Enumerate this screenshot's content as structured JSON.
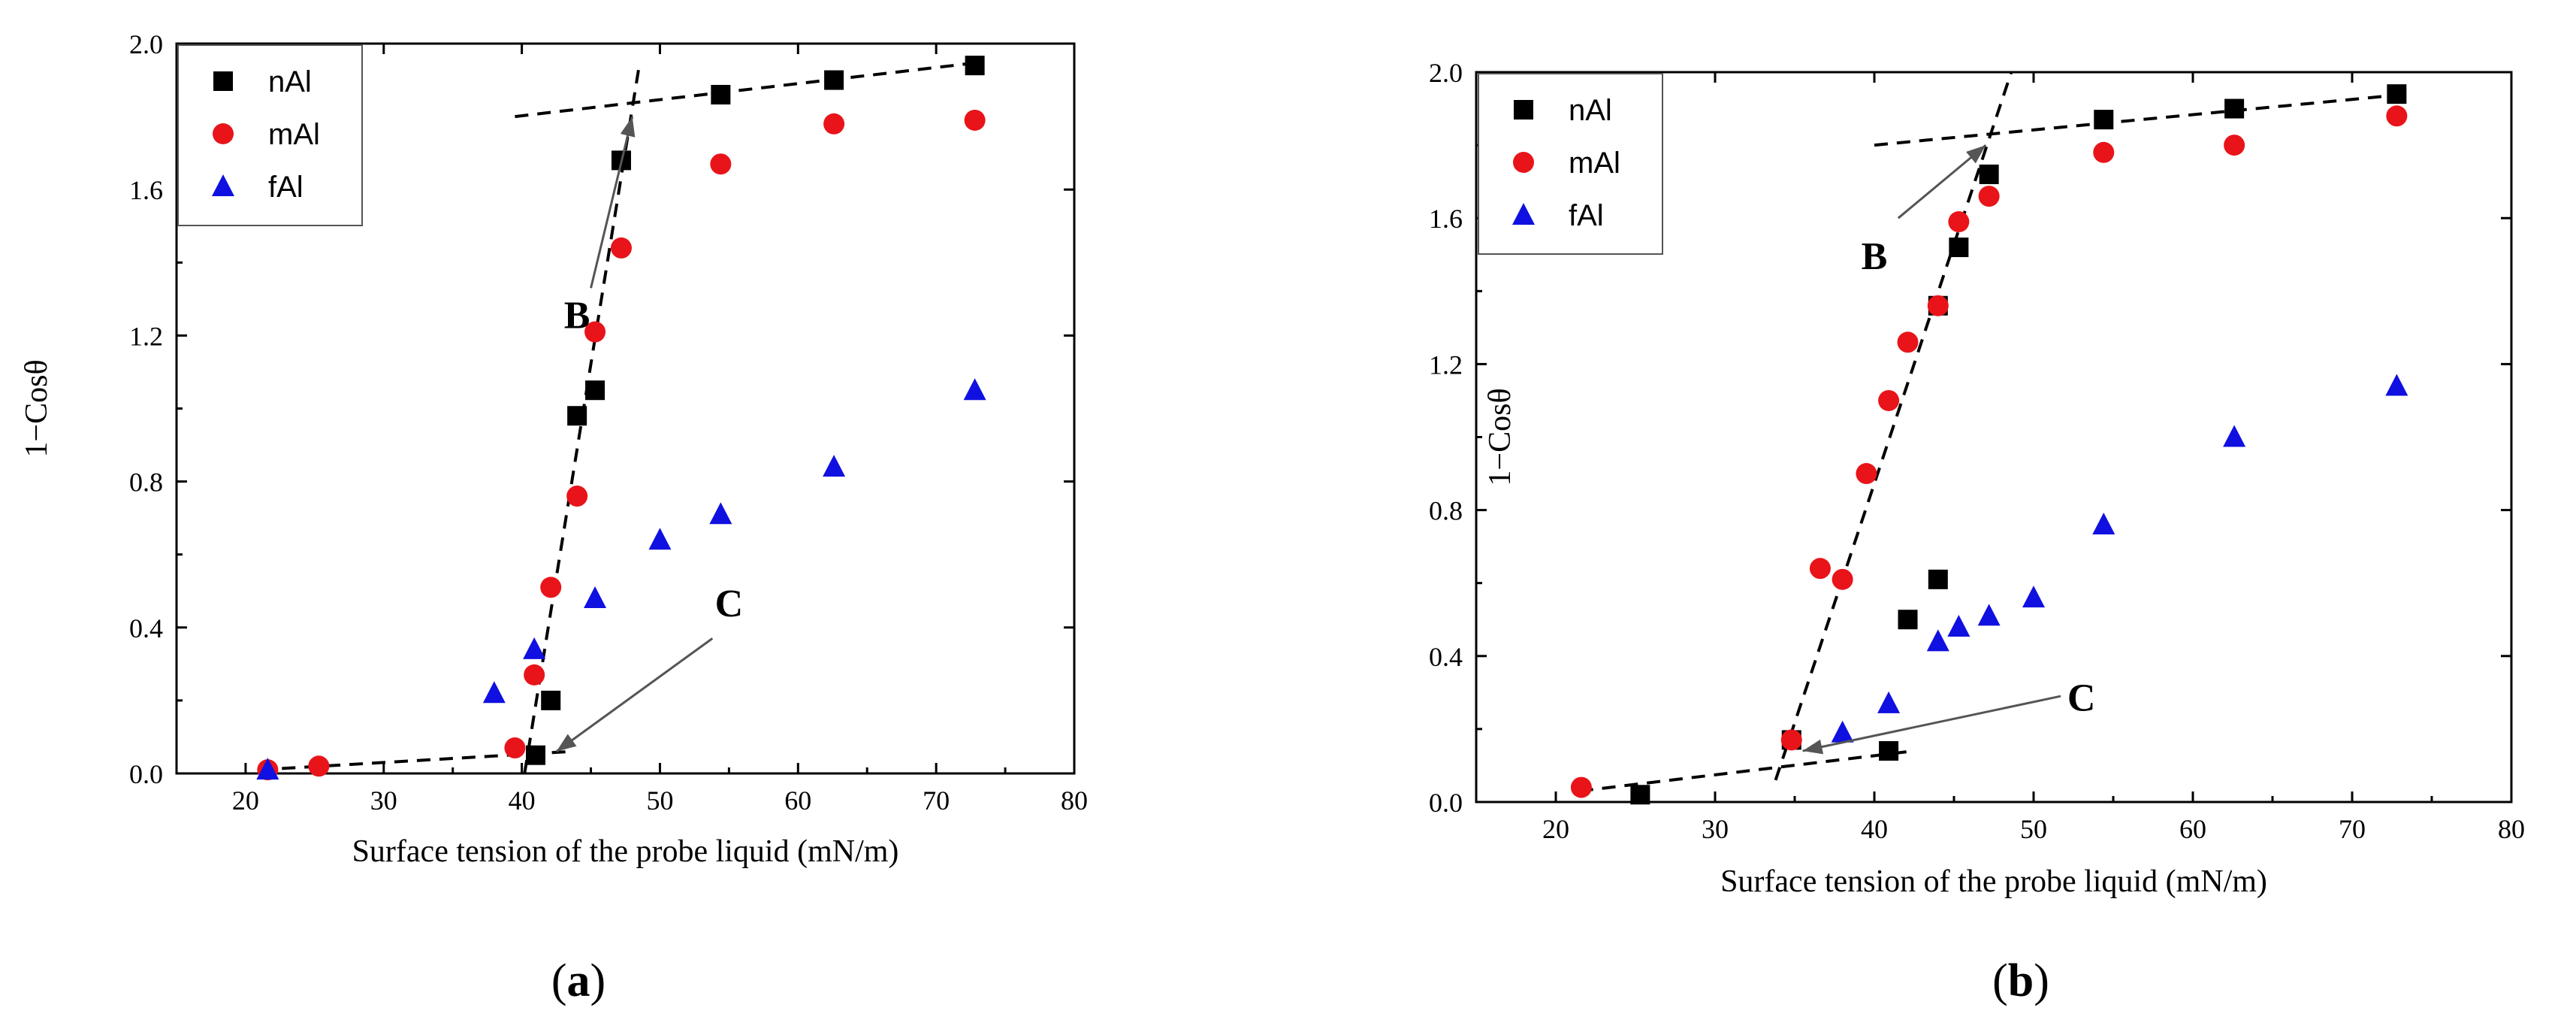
{
  "chart_data": [
    {
      "type": "scatter",
      "panel_label": "a",
      "xlabel": "Surface tension of the probe liquid (mN/m)",
      "ylabel": "1−Cosθ",
      "xlim": [
        15,
        80
      ],
      "ylim": [
        0,
        2.0
      ],
      "x_ticks": [
        20,
        30,
        40,
        50,
        60,
        70,
        80
      ],
      "y_ticks": [
        0.0,
        0.4,
        0.8,
        1.2,
        1.6,
        2.0
      ],
      "x_tick_labels": [
        "20",
        "30",
        "40",
        "50",
        "60",
        "70",
        "80"
      ],
      "y_tick_labels": [
        "0.0",
        "0.4",
        "0.8",
        "1.2",
        "1.6",
        "2.0"
      ],
      "legend_position": "top-left",
      "series": [
        {
          "name": "nAl",
          "marker": "square",
          "color": "#000000",
          "points": [
            [
              41.0,
              0.05
            ],
            [
              42.1,
              0.2
            ],
            [
              44.0,
              0.98
            ],
            [
              45.3,
              1.05
            ],
            [
              47.2,
              1.68
            ],
            [
              54.4,
              1.86
            ],
            [
              62.6,
              1.9
            ],
            [
              72.8,
              1.94
            ]
          ]
        },
        {
          "name": "mAl",
          "marker": "circle",
          "color": "#e8141a",
          "points": [
            [
              21.6,
              0.01
            ],
            [
              25.3,
              0.02
            ],
            [
              39.5,
              0.07
            ],
            [
              40.9,
              0.27
            ],
            [
              42.1,
              0.51
            ],
            [
              44.0,
              0.76
            ],
            [
              45.3,
              1.21
            ],
            [
              47.2,
              1.44
            ],
            [
              54.4,
              1.67
            ],
            [
              62.6,
              1.78
            ],
            [
              72.8,
              1.79
            ]
          ]
        },
        {
          "name": "fAl",
          "marker": "triangle",
          "color": "#1010e0",
          "points": [
            [
              21.6,
              0.01
            ],
            [
              38.0,
              0.22
            ],
            [
              40.9,
              0.34
            ],
            [
              45.3,
              0.48
            ],
            [
              50.0,
              0.64
            ],
            [
              54.4,
              0.71
            ],
            [
              62.6,
              0.84
            ],
            [
              72.8,
              1.05
            ]
          ]
        }
      ],
      "fit_lines": [
        {
          "from": [
            21.0,
            0.01
          ],
          "to": [
            43.5,
            0.06
          ]
        },
        {
          "from": [
            40.2,
            0.0
          ],
          "to": [
            48.5,
            1.94
          ]
        },
        {
          "from": [
            39.5,
            1.8
          ],
          "to": [
            73.5,
            1.95
          ]
        }
      ],
      "annotations": [
        {
          "text": "B",
          "label_at": [
            44.0,
            1.22
          ],
          "arrow_from": [
            45.0,
            1.33
          ],
          "arrow_to": [
            48.0,
            1.8
          ]
        },
        {
          "text": "C",
          "label_at": [
            55.0,
            0.43
          ],
          "arrow_from": [
            53.8,
            0.37
          ],
          "arrow_to": [
            42.5,
            0.06
          ]
        }
      ]
    },
    {
      "type": "scatter",
      "panel_label": "b",
      "xlabel": "Surface tension of the probe liquid (mN/m)",
      "ylabel": "1−Cosθ",
      "xlim": [
        15,
        80
      ],
      "ylim": [
        0,
        2.0
      ],
      "x_ticks": [
        20,
        30,
        40,
        50,
        60,
        70,
        80
      ],
      "y_ticks": [
        0.0,
        0.4,
        0.8,
        1.2,
        1.6,
        2.0
      ],
      "x_tick_labels": [
        "20",
        "30",
        "40",
        "50",
        "60",
        "70",
        "80"
      ],
      "y_tick_labels": [
        "0.0",
        "0.4",
        "0.8",
        "1.2",
        "1.6",
        "2.0"
      ],
      "legend_position": "top-left",
      "series": [
        {
          "name": "nAl",
          "marker": "square",
          "color": "#000000",
          "points": [
            [
              25.3,
              0.02
            ],
            [
              34.8,
              0.17
            ],
            [
              40.9,
              0.14
            ],
            [
              42.1,
              0.5
            ],
            [
              44.0,
              0.61
            ],
            [
              44.0,
              1.36
            ],
            [
              45.3,
              1.52
            ],
            [
              47.2,
              1.72
            ],
            [
              54.4,
              1.87
            ],
            [
              62.6,
              1.9
            ],
            [
              72.8,
              1.94
            ]
          ]
        },
        {
          "name": "mAl",
          "marker": "circle",
          "color": "#e8141a",
          "points": [
            [
              21.6,
              0.04
            ],
            [
              34.8,
              0.17
            ],
            [
              36.6,
              0.64
            ],
            [
              38.0,
              0.61
            ],
            [
              39.5,
              0.9
            ],
            [
              40.9,
              1.1
            ],
            [
              42.1,
              1.26
            ],
            [
              44.0,
              1.36
            ],
            [
              45.3,
              1.59
            ],
            [
              47.2,
              1.66
            ],
            [
              54.4,
              1.78
            ],
            [
              62.6,
              1.8
            ],
            [
              72.8,
              1.88
            ]
          ]
        },
        {
          "name": "fAl",
          "marker": "triangle",
          "color": "#1010e0",
          "points": [
            [
              38.0,
              0.19
            ],
            [
              40.9,
              0.27
            ],
            [
              44.0,
              0.44
            ],
            [
              45.3,
              0.48
            ],
            [
              47.2,
              0.51
            ],
            [
              50.0,
              0.56
            ],
            [
              54.4,
              0.76
            ],
            [
              62.6,
              1.0
            ],
            [
              72.8,
              1.14
            ]
          ]
        }
      ],
      "fit_lines": [
        {
          "from": [
            21.5,
            0.03
          ],
          "to": [
            42.5,
            0.14
          ]
        },
        {
          "from": [
            33.8,
            0.06
          ],
          "to": [
            48.6,
            2.0
          ]
        },
        {
          "from": [
            40.0,
            1.8
          ],
          "to": [
            73.5,
            1.94
          ]
        }
      ],
      "annotations": [
        {
          "text": "B",
          "label_at": [
            40.0,
            1.46
          ],
          "arrow_from": [
            41.5,
            1.6
          ],
          "arrow_to": [
            47.0,
            1.8
          ]
        },
        {
          "text": "C",
          "label_at": [
            53.0,
            0.25
          ],
          "arrow_from": [
            51.7,
            0.29
          ],
          "arrow_to": [
            35.5,
            0.14
          ]
        }
      ]
    }
  ]
}
